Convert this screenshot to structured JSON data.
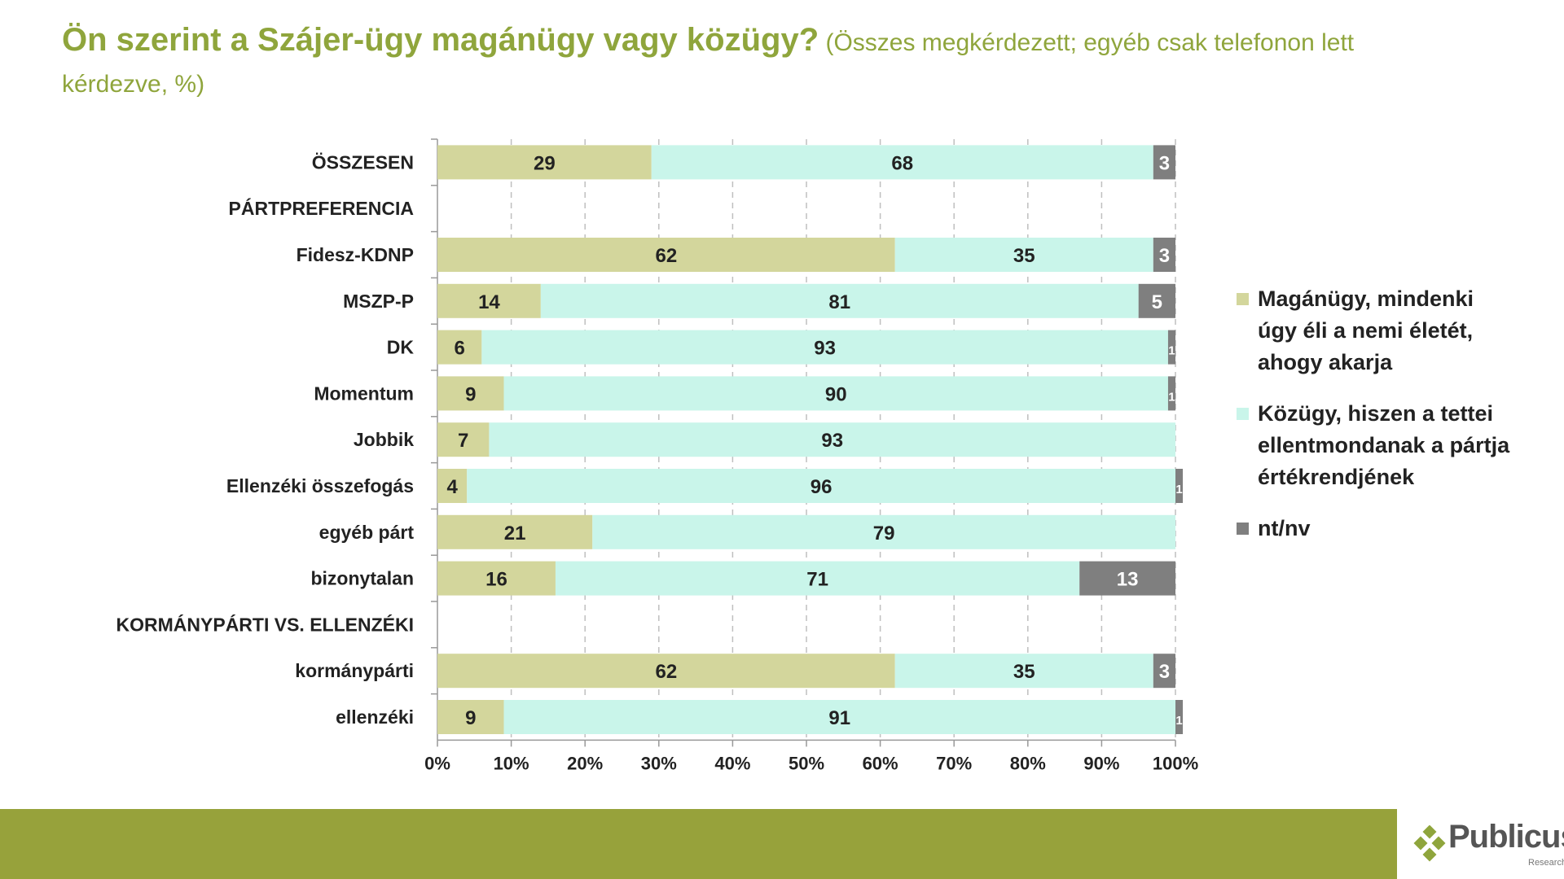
{
  "title": {
    "main": "Ön szerint a Szájer-ügy magánügy vagy közügy?",
    "sub": " (Összes megkérdezett; egyéb csak telefonon lett kérdezve, %)"
  },
  "colors": {
    "title": "#8fa53c",
    "private": "#d3d69c",
    "public": "#c9f5ea",
    "dknow": "#7f7f7f",
    "grid": "#bfbfbf",
    "footer": "#97a23b"
  },
  "legend": {
    "private": "Magánügy, mindenki úgy éli a nemi életét, ahogy akarja",
    "public": "Közügy, hiszen a tettei ellentmondanak a pártja értékrendjének",
    "dknow": "nt/nv"
  },
  "logo": {
    "name": "Publicus",
    "sub": "Research"
  },
  "chart_data": {
    "type": "bar",
    "orientation": "horizontal",
    "stacked": true,
    "unit": "%",
    "xlim": [
      0,
      100
    ],
    "xticks": [
      "0%",
      "10%",
      "20%",
      "30%",
      "40%",
      "50%",
      "60%",
      "70%",
      "80%",
      "90%",
      "100%"
    ],
    "grid": "vertical dashed",
    "legend_position": "right",
    "categories": [
      "ÖSSZESEN",
      "PÁRTPREFERENCIA",
      "Fidesz-KDNP",
      "MSZP-P",
      "DK",
      "Momentum",
      "Jobbik",
      "Ellenzéki összefogás",
      "egyéb párt",
      "bizonytalan",
      "KORMÁNYPÁRTI VS. ELLENZÉKI",
      "kormánypárti",
      "ellenzéki"
    ],
    "series": [
      {
        "name": "Magánügy, mindenki úgy éli a nemi életét, ahogy akarja",
        "values": [
          29,
          null,
          62,
          14,
          6,
          9,
          7,
          4,
          21,
          16,
          null,
          62,
          9
        ]
      },
      {
        "name": "Közügy, hiszen a tettei ellentmondanak a pártja értékrendjének",
        "values": [
          68,
          null,
          35,
          81,
          93,
          90,
          93,
          96,
          79,
          71,
          null,
          35,
          91
        ]
      },
      {
        "name": "nt/nv",
        "values": [
          3,
          null,
          3,
          5,
          1,
          1,
          0,
          1,
          0,
          13,
          null,
          3,
          1
        ]
      }
    ]
  }
}
